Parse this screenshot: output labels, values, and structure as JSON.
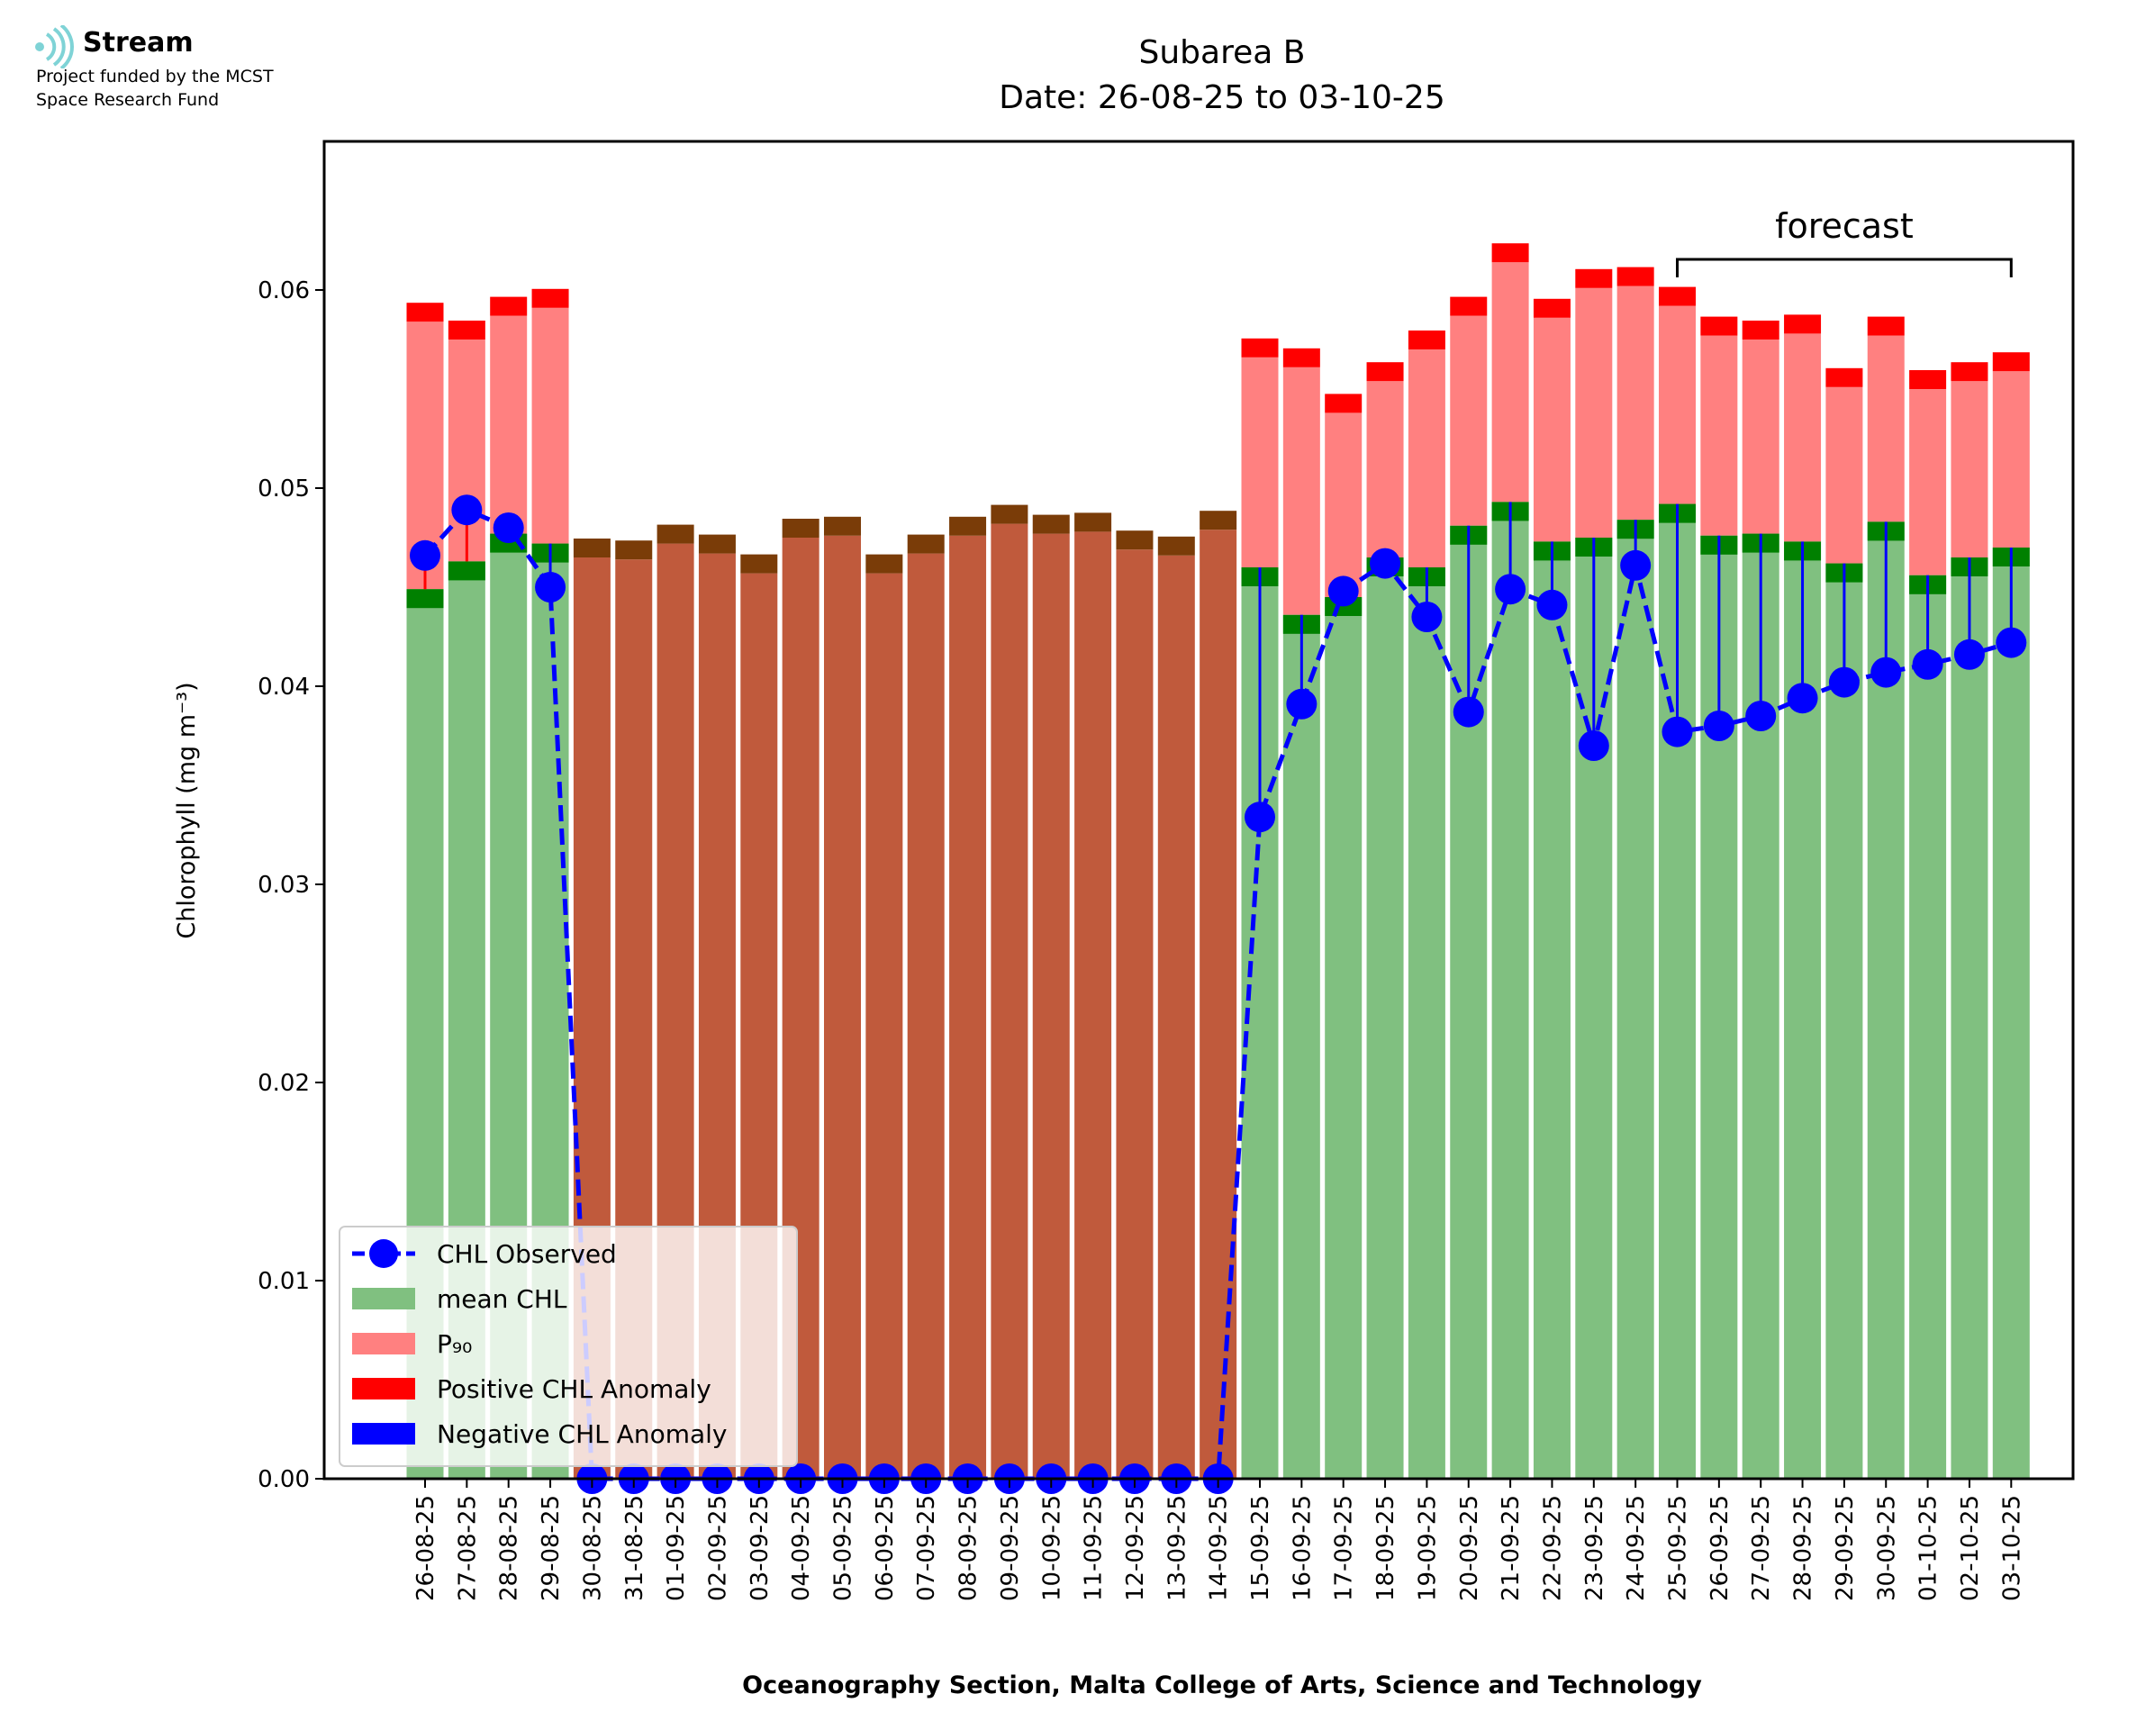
{
  "logo": {
    "name": "Stream",
    "line1": "Project funded by the MCST",
    "line2": "Space Research Fund",
    "icon": "stream-waves-icon",
    "color": "#7fd3d6"
  },
  "chart_data": {
    "type": "bar",
    "title": "Subarea B",
    "subtitle": "Date: 26-08-25 to 03-10-25",
    "xlabel": "Oceanography Section, Malta College of Arts, Science and Technology",
    "ylabel": "Chlorophyll (mg m⁻³)",
    "ylim": [
      0,
      0.0675
    ],
    "yticks": [
      "0.00",
      "0.01",
      "0.02",
      "0.03",
      "0.04",
      "0.05",
      "0.06"
    ],
    "categories": [
      "26-08-25",
      "27-08-25",
      "28-08-25",
      "29-08-25",
      "30-08-25",
      "31-08-25",
      "01-09-25",
      "02-09-25",
      "03-09-25",
      "04-09-25",
      "05-09-25",
      "06-09-25",
      "07-09-25",
      "08-09-25",
      "09-09-25",
      "10-09-25",
      "11-09-25",
      "12-09-25",
      "13-09-25",
      "14-09-25",
      "15-09-25",
      "16-09-25",
      "17-09-25",
      "18-09-25",
      "19-09-25",
      "20-09-25",
      "21-09-25",
      "22-09-25",
      "23-09-25",
      "24-09-25",
      "25-09-25",
      "26-09-25",
      "27-09-25",
      "28-09-25",
      "29-09-25",
      "30-09-25",
      "01-10-25",
      "02-10-25",
      "03-10-25"
    ],
    "series": [
      {
        "name": "CHL Observed",
        "color": "#0000ff",
        "style": "dashed-line-with-circles",
        "values": [
          0.0466,
          0.0489,
          0.048,
          0.045,
          0,
          0,
          0,
          0,
          0,
          0,
          0,
          0,
          0,
          0,
          0,
          0,
          0,
          0,
          0,
          0,
          0.0334,
          0.0391,
          0.0448,
          0.0462,
          0.0435,
          0.0387,
          0.0449,
          0.0441,
          0.037,
          0.0461,
          0.0377,
          0.038,
          0.0385,
          0.0394,
          0.0402,
          0.0407,
          0.0411,
          0.0416,
          0.0422
        ]
      },
      {
        "name": "mean CHL",
        "color": "#80c080",
        "values": [
          0.0449,
          0.0463,
          0.0477,
          0.0472,
          0.0465,
          0.0464,
          0.0472,
          0.0467,
          0.0457,
          0.0475,
          0.0476,
          0.0457,
          0.0467,
          0.0476,
          0.0482,
          0.0477,
          0.0478,
          0.0469,
          0.0466,
          0.0479,
          0.046,
          0.0436,
          0.0445,
          0.0465,
          0.046,
          0.0481,
          0.0493,
          0.0473,
          0.0475,
          0.0484,
          0.0492,
          0.0476,
          0.0477,
          0.0473,
          0.0462,
          0.0483,
          0.0456,
          0.0465,
          0.047
        ]
      },
      {
        "name": "P₉₀",
        "color": "#ff8080",
        "values": [
          0.0584,
          0.0575,
          0.0587,
          0.0591,
          0.0465,
          0.0464,
          0.0472,
          0.0467,
          0.0457,
          0.0475,
          0.0476,
          0.0457,
          0.0467,
          0.0476,
          0.0482,
          0.0477,
          0.0478,
          0.0469,
          0.0466,
          0.0479,
          0.0566,
          0.0561,
          0.0538,
          0.0554,
          0.057,
          0.0587,
          0.0614,
          0.0586,
          0.0601,
          0.0602,
          0.0592,
          0.0577,
          0.0575,
          0.0578,
          0.0551,
          0.0577,
          0.055,
          0.0554,
          0.0559
        ]
      },
      {
        "name": "Positive CHL Anomaly",
        "color": "#ff0000"
      },
      {
        "name": "Negative CHL Anomaly",
        "color": "#0000ff"
      }
    ],
    "no_data_range": [
      "30-08-25",
      "14-09-25"
    ],
    "no_data_color": "#c05a3c",
    "annotations": [
      {
        "text": "forecast",
        "from": "25-09-25",
        "to": "03-10-25"
      }
    ],
    "legend": "lower-left",
    "grid": false
  }
}
